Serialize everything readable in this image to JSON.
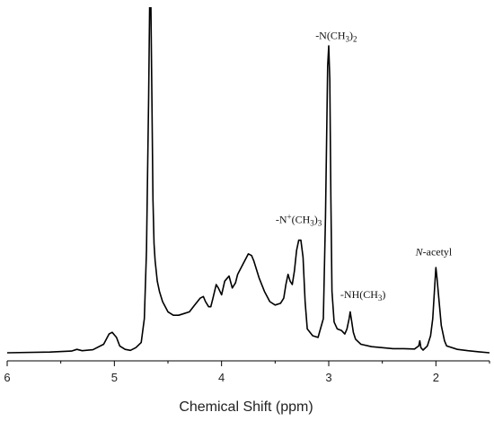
{
  "chart_data": {
    "type": "line",
    "title": "",
    "xlabel": "Chemical Shift (ppm)",
    "ylabel": "",
    "x_reversed": true,
    "xlim": [
      6,
      1.5
    ],
    "ylim": [
      0,
      100
    ],
    "x_ticks": [
      6,
      5,
      4,
      3,
      2
    ],
    "grid": false,
    "legend": "none",
    "line_color": "#000000",
    "series": [
      {
        "x": [
          6.0,
          5.6,
          5.4,
          5.35,
          5.3,
          5.2,
          5.1,
          5.05,
          5.02,
          4.98,
          4.95,
          4.9,
          4.85,
          4.8,
          4.75,
          4.72,
          4.7,
          4.68,
          4.67,
          4.66,
          4.65,
          4.64,
          4.63,
          4.62,
          4.6,
          4.58,
          4.55,
          4.5,
          4.45,
          4.4,
          4.35,
          4.3,
          4.25,
          4.2,
          4.17,
          4.15,
          4.12,
          4.1,
          4.08,
          4.05,
          4.03,
          4.0,
          3.97,
          3.93,
          3.9,
          3.87,
          3.85,
          3.8,
          3.75,
          3.72,
          3.7,
          3.65,
          3.6,
          3.55,
          3.5,
          3.45,
          3.42,
          3.4,
          3.38,
          3.36,
          3.34,
          3.32,
          3.3,
          3.28,
          3.26,
          3.24,
          3.22,
          3.2,
          3.15,
          3.1,
          3.05,
          3.03,
          3.01,
          3.0,
          2.99,
          2.98,
          2.97,
          2.95,
          2.92,
          2.88,
          2.85,
          2.83,
          2.81,
          2.8,
          2.79,
          2.77,
          2.75,
          2.7,
          2.6,
          2.5,
          2.4,
          2.3,
          2.2,
          2.16,
          2.15,
          2.14,
          2.12,
          2.08,
          2.05,
          2.03,
          2.01,
          2.0,
          1.99,
          1.97,
          1.95,
          1.92,
          1.9,
          1.8,
          1.7,
          1.6,
          1.5
        ],
        "y": [
          0,
          0.2,
          0.5,
          1.0,
          0.6,
          0.9,
          2.5,
          5.5,
          6.0,
          4.5,
          2.0,
          1.0,
          0.7,
          1.5,
          3.0,
          10,
          30,
          75,
          104,
          104,
          75,
          45,
          32,
          27,
          21,
          18,
          15,
          12,
          11,
          11,
          11.5,
          12,
          14,
          16,
          16.5,
          15,
          13.5,
          13.5,
          16,
          20,
          19,
          17,
          21,
          22.5,
          19,
          20.5,
          23,
          26,
          29,
          28.5,
          27,
          22,
          18,
          15,
          14,
          14.5,
          16,
          20,
          23,
          21,
          20,
          24,
          30,
          33,
          33,
          28,
          15,
          7,
          5,
          4.5,
          10,
          40,
          84,
          90,
          80,
          45,
          18,
          9,
          7,
          6.5,
          5.5,
          7,
          10,
          12,
          10,
          6,
          4,
          2.5,
          1.8,
          1.5,
          1.2,
          1.2,
          1.1,
          2.0,
          3.5,
          1.5,
          0.8,
          2.0,
          5.0,
          10,
          20,
          25,
          22,
          15,
          8,
          3.5,
          2.0,
          1.0,
          0.6,
          0.3,
          0
        ]
      }
    ],
    "annotations": [
      {
        "base": "-N(CH",
        "sub1": "3",
        "mid": ")",
        "sub2": "2",
        "x_ppm": 2.93,
        "y": 92
      },
      {
        "base": "-N",
        "sup": "+",
        "mid": "(CH",
        "sub1": "3",
        "end": ")",
        "sub2": "3",
        "x_ppm": 3.28,
        "y": 38
      },
      {
        "base": "-NH(CH",
        "sub1": "3",
        "end": ")",
        "x_ppm": 2.68,
        "y": 16
      },
      {
        "italic": "N",
        "base": "-acetyl",
        "x_ppm": 2.02,
        "y": 28.5
      }
    ]
  }
}
